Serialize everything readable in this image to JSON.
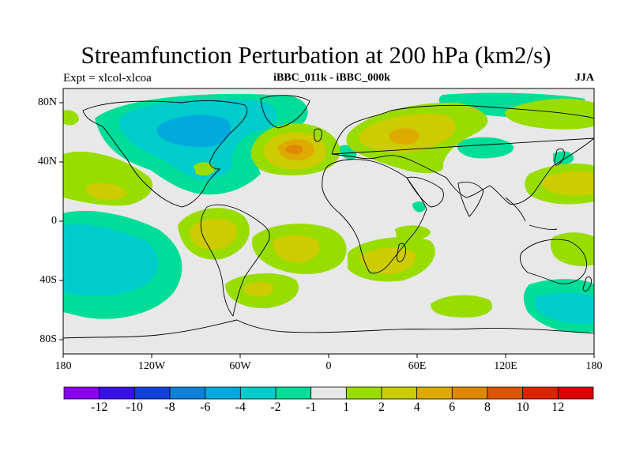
{
  "title": "Streamfunction Perturbation at 200 hPa (km2/s)",
  "left_subtitle": "Expt = xlcol-xlcoa",
  "center_subtitle": "iBBC_011k - iBBC_000k",
  "right_subtitle": "JJA",
  "lat_labels": [
    "80N",
    "40N",
    "0",
    "40S",
    "80S"
  ],
  "lon_labels": [
    "180",
    "120W",
    "60W",
    "0",
    "60E",
    "120E",
    "180"
  ],
  "colorbar": {
    "colors": [
      "#8800ee",
      "#3a10e8",
      "#1140dd",
      "#0c80dd",
      "#00aadd",
      "#00cccc",
      "#00dd99",
      "#e8e8e8",
      "#99dd00",
      "#cccc00",
      "#ddaa00",
      "#dd8800",
      "#dd5500",
      "#dd2200",
      "#dd0000"
    ],
    "labels": [
      "-12",
      "-10",
      "-8",
      "-6",
      "-4",
      "-2",
      "-1",
      "1",
      "2",
      "4",
      "6",
      "8",
      "10",
      "12"
    ]
  },
  "colors": {
    "neutral": "#e8e8e8",
    "teal": "#00cccc",
    "green_neg": "#00dd99",
    "cyan": "#00aadd",
    "lime": "#99dd00",
    "yellow": "#cccc00",
    "orange": "#ddaa00",
    "dark_orange": "#dd8800"
  }
}
